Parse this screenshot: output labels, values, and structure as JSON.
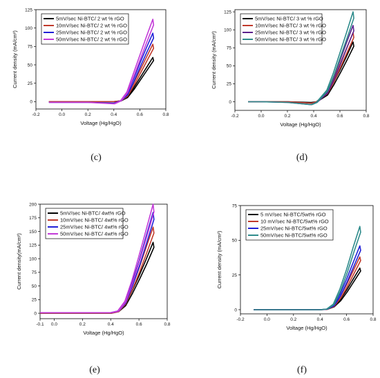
{
  "chart_data": [
    {
      "type": "line",
      "caption": "(c)",
      "xlabel": "Voltage (Hg/HgO)",
      "ylabel": "Current density (mA/cm²)",
      "xlim": [
        -0.2,
        0.8
      ],
      "ylim": [
        -10,
        125
      ],
      "xticks": [
        "-0.2",
        "0.0",
        "0.2",
        "0.4",
        "0.6",
        "0.8"
      ],
      "yticks": [
        "0",
        "25",
        "50",
        "75",
        "100",
        "125"
      ],
      "legend": "top-left",
      "series": [
        {
          "name": "5mV/sec Ni-BTC/ 2 wt % rGO",
          "color": "#000000",
          "x": [
            -0.1,
            0.0,
            0.2,
            0.4,
            0.45,
            0.5,
            0.55,
            0.6,
            0.65,
            0.7
          ],
          "y": [
            0,
            0,
            0,
            0,
            1,
            6,
            18,
            32,
            46,
            60
          ]
        },
        {
          "name": "10mV/sec Ni-BTC/ 2 wt % rGO",
          "color": "#c0392b",
          "x": [
            -0.1,
            0.0,
            0.2,
            0.4,
            0.45,
            0.5,
            0.55,
            0.6,
            0.65,
            0.7
          ],
          "y": [
            0,
            0,
            0,
            0,
            1,
            8,
            24,
            42,
            60,
            78
          ]
        },
        {
          "name": "25mV/sec Ni-BTC/ 2 wt % rGO",
          "color": "#1f1fd6",
          "x": [
            -0.1,
            0.0,
            0.2,
            0.4,
            0.45,
            0.5,
            0.55,
            0.6,
            0.65,
            0.7
          ],
          "y": [
            -1,
            -1,
            -1,
            -2,
            1,
            10,
            30,
            52,
            73,
            93
          ]
        },
        {
          "name": "50mV/sec Ni-BTC/ 2 wt % rGO",
          "color": "#c33ad8",
          "x": [
            -0.1,
            0.0,
            0.2,
            0.4,
            0.45,
            0.5,
            0.55,
            0.6,
            0.65,
            0.7
          ],
          "y": [
            -1,
            -1,
            -1,
            -3,
            1,
            13,
            38,
            63,
            88,
            112
          ]
        }
      ]
    },
    {
      "type": "line",
      "caption": "(d)",
      "xlabel": "Voltage (Hg/HgO)",
      "ylabel": "Current density (mA/cm²)",
      "xlim": [
        -0.2,
        0.8
      ],
      "ylim": [
        -12,
        128
      ],
      "xticks": [
        "-0.2",
        "0.0",
        "0.2",
        "0.4",
        "0.6",
        "0.8"
      ],
      "yticks": [
        "0",
        "25",
        "50",
        "75",
        "100",
        "125"
      ],
      "legend": "top-left",
      "series": [
        {
          "name": "5mV/sec Ni-BTC/ 3 wt % rGO",
          "color": "#000000",
          "x": [
            -0.1,
            0.0,
            0.2,
            0.38,
            0.42,
            0.5,
            0.55,
            0.6,
            0.65,
            0.7
          ],
          "y": [
            0,
            0,
            0,
            -1,
            0,
            10,
            26,
            44,
            63,
            83
          ]
        },
        {
          "name": "10mV/sec Ni-BTC/ 3 wt % rGO",
          "color": "#c0392b",
          "x": [
            -0.1,
            0.0,
            0.2,
            0.38,
            0.42,
            0.5,
            0.55,
            0.6,
            0.65,
            0.7
          ],
          "y": [
            0,
            0,
            0,
            -2,
            0,
            12,
            30,
            52,
            74,
            96
          ]
        },
        {
          "name": "25mV/sec Ni-BTC/ 3 wt % rGO",
          "color": "#5a1f8c",
          "x": [
            -0.1,
            0.0,
            0.2,
            0.38,
            0.42,
            0.5,
            0.55,
            0.6,
            0.65,
            0.7
          ],
          "y": [
            0,
            0,
            -1,
            -4,
            -1,
            13,
            33,
            57,
            82,
            106
          ]
        },
        {
          "name": "50mV/sec Ni-BTC/ 3 wt % rGO",
          "color": "#2e8b8b",
          "x": [
            -0.1,
            0.0,
            0.2,
            0.38,
            0.42,
            0.5,
            0.55,
            0.6,
            0.65,
            0.7
          ],
          "y": [
            0,
            0,
            -1,
            -4,
            -1,
            16,
            40,
            68,
            96,
            125
          ]
        }
      ]
    },
    {
      "type": "line",
      "caption": "(e)",
      "xlabel": "Voltage (Hg/HgO)",
      "ylabel": "Current density(mA/cm²)",
      "xlim": [
        -0.1,
        0.8
      ],
      "ylim": [
        -10,
        200
      ],
      "xticks": [
        "-0.1",
        "0.0",
        "0.2",
        "0.4",
        "0.6",
        "0.8"
      ],
      "yticks": [
        "0",
        "25",
        "50",
        "75",
        "100",
        "125",
        "150",
        "175",
        "200"
      ],
      "legend": "top-left",
      "series": [
        {
          "name": "5mV/sec Ni-BTC/ 4wt% rGO",
          "color": "#000000",
          "x": [
            -0.1,
            0.0,
            0.2,
            0.4,
            0.45,
            0.5,
            0.55,
            0.6,
            0.65,
            0.7
          ],
          "y": [
            0,
            0,
            0,
            0,
            3,
            15,
            40,
            68,
            98,
            130
          ]
        },
        {
          "name": "10mV/sec Ni-BTC/ 4wt% rGO",
          "color": "#c0392b",
          "x": [
            -0.1,
            0.0,
            0.2,
            0.4,
            0.45,
            0.5,
            0.55,
            0.6,
            0.65,
            0.7
          ],
          "y": [
            0,
            0,
            0,
            0,
            3,
            18,
            48,
            82,
            120,
            158
          ]
        },
        {
          "name": "25mV/sec Ni-BTC/ 4wt% rGO",
          "color": "#1f1fd6",
          "x": [
            -0.1,
            0.0,
            0.2,
            0.4,
            0.45,
            0.5,
            0.55,
            0.6,
            0.65,
            0.7
          ],
          "y": [
            1,
            1,
            1,
            1,
            4,
            20,
            55,
            95,
            140,
            185
          ]
        },
        {
          "name": "50mV/sec Ni-BTC/ 4wt% rGO",
          "color": "#c33ad8",
          "x": [
            -0.1,
            0.0,
            0.2,
            0.4,
            0.45,
            0.5,
            0.55,
            0.6,
            0.65,
            0.7
          ],
          "y": [
            1,
            1,
            1,
            1,
            4,
            22,
            60,
            105,
            152,
            200
          ]
        }
      ]
    },
    {
      "type": "line",
      "caption": "(f)",
      "xlabel": "Voltage (Hg/HgO)",
      "ylabel": "Current density (mA/cm²)",
      "xlim": [
        -0.2,
        0.8
      ],
      "ylim": [
        -3,
        75
      ],
      "xticks": [
        "-0.2",
        "0.0",
        "0.2",
        "0.4",
        "0.6",
        "0.8"
      ],
      "yticks": [
        "0",
        "25",
        "50",
        "75"
      ],
      "legend": "top-left",
      "series": [
        {
          "name": "5 mV/sec Ni-BTC/5wt% rGO",
          "color": "#000000",
          "x": [
            -0.1,
            0.0,
            0.2,
            0.4,
            0.45,
            0.5,
            0.55,
            0.6,
            0.65,
            0.7
          ],
          "y": [
            0,
            0,
            0,
            0,
            0.3,
            2,
            7,
            14,
            22,
            30
          ]
        },
        {
          "name": "10 mV/sec Ni-BTC/5wt% rGO",
          "color": "#c0392b",
          "x": [
            -0.1,
            0.0,
            0.2,
            0.4,
            0.45,
            0.5,
            0.55,
            0.6,
            0.65,
            0.7
          ],
          "y": [
            0,
            0,
            0,
            0,
            0.3,
            2.5,
            9,
            18,
            28,
            38
          ]
        },
        {
          "name": "25mV/sec Ni-BTC/5wt% rGO",
          "color": "#1f1fd6",
          "x": [
            -0.1,
            0.0,
            0.2,
            0.4,
            0.45,
            0.5,
            0.55,
            0.6,
            0.65,
            0.7
          ],
          "y": [
            0,
            0,
            0,
            0,
            0.4,
            3,
            11,
            22,
            34,
            46
          ]
        },
        {
          "name": "50mV/sec Ni-BTC/5wt% rGO",
          "color": "#2e8b8b",
          "x": [
            -0.1,
            0.0,
            0.2,
            0.4,
            0.45,
            0.5,
            0.55,
            0.6,
            0.65,
            0.7
          ],
          "y": [
            0,
            0,
            0,
            0,
            0.5,
            4,
            15,
            29,
            45,
            60
          ]
        }
      ]
    }
  ]
}
